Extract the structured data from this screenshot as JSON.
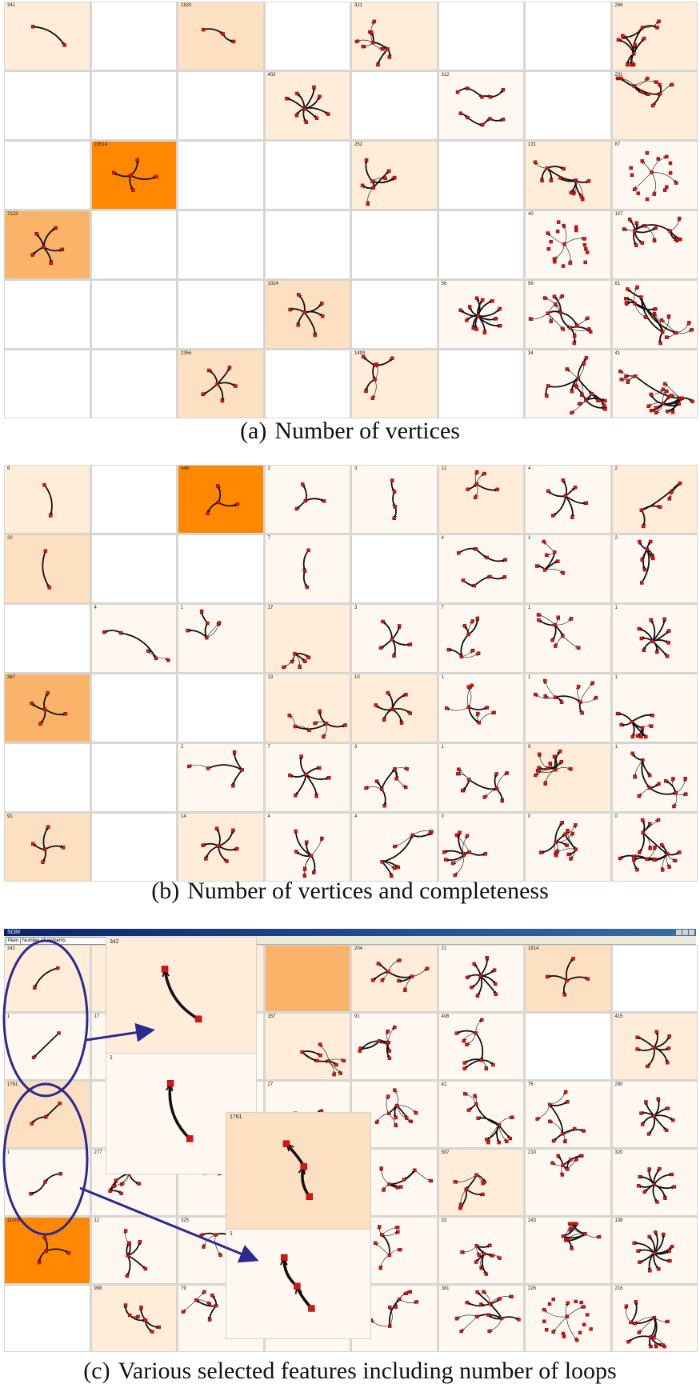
{
  "palette": {
    "0": "#ffffff",
    "1": "#fff8f0",
    "2": "#ffecd9",
    "3": "#fde0c2",
    "4": "#fbb36a",
    "5": "#ff8800",
    "edge": "#111111",
    "node": "#dd1111",
    "ring": "#2a2a90"
  },
  "panel_a": {
    "caption_tag": "(a)",
    "caption_text": "Number of vertices",
    "cells": [
      {
        "s": 2,
        "l": "341",
        "v": 2,
        "t": "arc"
      },
      {
        "s": 0
      },
      {
        "s": 3,
        "l": "1820",
        "v": 3,
        "t": "arc"
      },
      {
        "s": 0
      },
      {
        "s": 2,
        "l": "321",
        "v": 10,
        "t": "tree"
      },
      {
        "s": 0
      },
      {
        "s": 0
      },
      {
        "s": 2,
        "l": "266",
        "v": 12,
        "t": "tree"
      },
      {
        "s": 0
      },
      {
        "s": 0
      },
      {
        "s": 0
      },
      {
        "s": 2,
        "l": "402",
        "v": 9,
        "t": "star"
      },
      {
        "s": 0
      },
      {
        "s": 1,
        "l": "312",
        "v": 10,
        "t": "pair"
      },
      {
        "s": 0
      },
      {
        "s": 2,
        "l": "231",
        "v": 11,
        "t": "tree"
      },
      {
        "s": 0
      },
      {
        "s": 5,
        "l": "23514",
        "v": 5,
        "t": "star"
      },
      {
        "s": 0
      },
      {
        "s": 0
      },
      {
        "s": 2,
        "l": "252",
        "v": 9,
        "t": "tree"
      },
      {
        "s": 0
      },
      {
        "s": 2,
        "l": "131",
        "v": 12,
        "t": "tree"
      },
      {
        "s": 1,
        "l": "87",
        "v": 16,
        "t": "ring"
      },
      {
        "s": 4,
        "l": "7123",
        "v": 6,
        "t": "star"
      },
      {
        "s": 0
      },
      {
        "s": 0
      },
      {
        "s": 0
      },
      {
        "s": 0
      },
      {
        "s": 0
      },
      {
        "s": 1,
        "l": "40",
        "v": 18,
        "t": "ring"
      },
      {
        "s": 1,
        "l": "107",
        "v": 14,
        "t": "tree"
      },
      {
        "s": 0
      },
      {
        "s": 0
      },
      {
        "s": 0
      },
      {
        "s": 3,
        "l": "1024",
        "v": 7,
        "t": "star"
      },
      {
        "s": 0
      },
      {
        "s": 1,
        "l": "56",
        "v": 13,
        "t": "star"
      },
      {
        "s": 1,
        "l": "99",
        "v": 16,
        "t": "tree"
      },
      {
        "s": 1,
        "l": "61",
        "v": 18,
        "t": "tree"
      },
      {
        "s": 0
      },
      {
        "s": 0
      },
      {
        "s": 3,
        "l": "2356",
        "v": 6,
        "t": "star"
      },
      {
        "s": 0
      },
      {
        "s": 2,
        "l": "1493",
        "v": 7,
        "t": "tree"
      },
      {
        "s": 0
      },
      {
        "s": 1,
        "l": "34",
        "v": 20,
        "t": "tree"
      },
      {
        "s": 1,
        "l": "41",
        "v": 22,
        "t": "tree"
      }
    ]
  },
  "panel_b": {
    "caption_tag": "(b)",
    "caption_text": "Number of vertices and completeness",
    "cells": [
      {
        "s": 2,
        "l": "6",
        "v": 2,
        "t": "arc"
      },
      {
        "s": 0
      },
      {
        "s": 5,
        "l": "448",
        "v": 4,
        "t": "star"
      },
      {
        "s": 1,
        "l": "2",
        "v": 4,
        "t": "star"
      },
      {
        "s": 1,
        "l": "3",
        "v": 4,
        "t": "arc"
      },
      {
        "s": 2,
        "l": "12",
        "v": 6,
        "t": "tree"
      },
      {
        "s": 1,
        "l": "4",
        "v": 7,
        "t": "star"
      },
      {
        "s": 2,
        "l": "2",
        "v": 6,
        "t": "tree"
      },
      {
        "s": 3,
        "l": "20",
        "v": 2,
        "t": "arc"
      },
      {
        "s": 0
      },
      {
        "s": 0
      },
      {
        "s": 1,
        "l": "7",
        "v": 3,
        "t": "arc"
      },
      {
        "s": 0
      },
      {
        "s": 1,
        "l": "4",
        "v": 7,
        "t": "pair"
      },
      {
        "s": 1,
        "l": "1",
        "v": 7,
        "t": "tree"
      },
      {
        "s": 1,
        "l": "2",
        "v": 8,
        "t": "tree"
      },
      {
        "s": 0
      },
      {
        "s": 1,
        "l": "4",
        "v": 5,
        "t": "tree"
      },
      {
        "s": 1,
        "l": "1",
        "v": 6,
        "t": "tree"
      },
      {
        "s": 2,
        "l": "17",
        "v": 6,
        "t": "tree"
      },
      {
        "s": 1,
        "l": "3",
        "v": 6,
        "t": "star"
      },
      {
        "s": 1,
        "l": "7",
        "v": 8,
        "t": "tree"
      },
      {
        "s": 1,
        "l": "1",
        "v": 9,
        "t": "tree"
      },
      {
        "s": 1,
        "l": "1",
        "v": 10,
        "t": "star"
      },
      {
        "s": 4,
        "l": "367",
        "v": 5,
        "t": "star"
      },
      {
        "s": 0
      },
      {
        "s": 0
      },
      {
        "s": 2,
        "l": "13",
        "v": 8,
        "t": "tree"
      },
      {
        "s": 2,
        "l": "10",
        "v": 7,
        "t": "star"
      },
      {
        "s": 1,
        "l": "1",
        "v": 8,
        "t": "tree"
      },
      {
        "s": 1,
        "l": "1",
        "v": 10,
        "t": "tree"
      },
      {
        "s": 1,
        "l": "1",
        "v": 10,
        "t": "tree"
      },
      {
        "s": 0
      },
      {
        "s": 0
      },
      {
        "s": 1,
        "l": "2",
        "v": 5,
        "t": "tree"
      },
      {
        "s": 1,
        "l": "7",
        "v": 7,
        "t": "star"
      },
      {
        "s": 1,
        "l": "3",
        "v": 8,
        "t": "tree"
      },
      {
        "s": 1,
        "l": "1",
        "v": 10,
        "t": "tree"
      },
      {
        "s": 2,
        "l": "9",
        "v": 12,
        "t": "tree"
      },
      {
        "s": 1,
        "l": "1",
        "v": 13,
        "t": "tree"
      },
      {
        "s": 3,
        "l": "91",
        "v": 5,
        "t": "star"
      },
      {
        "s": 0
      },
      {
        "s": 2,
        "l": "14",
        "v": 7,
        "t": "star"
      },
      {
        "s": 1,
        "l": "4",
        "v": 8,
        "t": "tree"
      },
      {
        "s": 1,
        "l": "4",
        "v": 8,
        "t": "tree"
      },
      {
        "s": 1,
        "l": "0",
        "v": 10,
        "t": "tree"
      },
      {
        "s": 1,
        "l": "0",
        "v": 14,
        "t": "tree"
      },
      {
        "s": 1,
        "l": "0",
        "v": 20,
        "t": "tree"
      }
    ]
  },
  "panel_c": {
    "caption_tag": "(c)",
    "caption_text": "Various selected features including number of loops",
    "window_title": "SOM",
    "toolbar_main": "Main",
    "toolbar_field": "Number of elements",
    "cells": [
      {
        "s": 2,
        "l": "342",
        "v": 2,
        "t": "arc"
      },
      {
        "s": 2,
        "l": "",
        "v": 0,
        "t": "arc"
      },
      {
        "s": 2,
        "l": "",
        "v": 0,
        "t": "arc"
      },
      {
        "s": 4,
        "l": "",
        "v": 0,
        "t": "arc"
      },
      {
        "s": 2,
        "l": "204",
        "v": 9,
        "t": "tree"
      },
      {
        "s": 1,
        "l": "21",
        "v": 9,
        "t": "star"
      },
      {
        "s": 3,
        "l": "1814",
        "v": 5,
        "t": "star"
      },
      {
        "s": 0
      },
      {
        "s": 1,
        "l": "1",
        "v": 2,
        "t": "arc"
      },
      {
        "s": 1,
        "l": "17",
        "v": 0,
        "t": "arc"
      },
      {
        "s": 1,
        "l": "",
        "v": 0,
        "t": "arc"
      },
      {
        "s": 2,
        "l": "157",
        "v": 9,
        "t": "tree"
      },
      {
        "s": 1,
        "l": "91",
        "v": 9,
        "t": "tree"
      },
      {
        "s": 1,
        "l": "406",
        "v": 10,
        "t": "tree"
      },
      {
        "s": 0
      },
      {
        "s": 2,
        "l": "415",
        "v": 8,
        "t": "star"
      },
      {
        "s": 3,
        "l": "1761",
        "v": 3,
        "t": "arc"
      },
      {
        "s": 1,
        "l": "",
        "v": 0,
        "t": "arc"
      },
      {
        "s": 1,
        "l": "",
        "v": 0,
        "t": "arc"
      },
      {
        "s": 1,
        "l": "27",
        "v": 9,
        "t": "tree"
      },
      {
        "s": 1,
        "l": "",
        "v": 10,
        "t": "tree"
      },
      {
        "s": 1,
        "l": "42",
        "v": 12,
        "t": "tree"
      },
      {
        "s": 1,
        "l": "76",
        "v": 10,
        "t": "tree"
      },
      {
        "s": 1,
        "l": "290",
        "v": 9,
        "t": "star"
      },
      {
        "s": 1,
        "l": "1",
        "v": 3,
        "t": "arc"
      },
      {
        "s": 1,
        "l": "277",
        "v": 8,
        "t": "tree"
      },
      {
        "s": 1,
        "l": "",
        "v": 6,
        "t": "tree"
      },
      {
        "s": 1,
        "l": "",
        "v": 0,
        "t": "arc"
      },
      {
        "s": 1,
        "l": "",
        "v": 8,
        "t": "tree"
      },
      {
        "s": 2,
        "l": "507",
        "v": 8,
        "t": "tree"
      },
      {
        "s": 1,
        "l": "210",
        "v": 8,
        "t": "tree"
      },
      {
        "s": 1,
        "l": "320",
        "v": 10,
        "t": "star"
      },
      {
        "s": 5,
        "l": "11006",
        "v": 4,
        "t": "star"
      },
      {
        "s": 1,
        "l": "12",
        "v": 7,
        "t": "tree"
      },
      {
        "s": 1,
        "l": "325",
        "v": 5,
        "t": "tree"
      },
      {
        "s": 1,
        "l": "",
        "v": 0,
        "t": "arc"
      },
      {
        "s": 1,
        "l": "",
        "v": 8,
        "t": "tree"
      },
      {
        "s": 1,
        "l": "33",
        "v": 10,
        "t": "tree"
      },
      {
        "s": 1,
        "l": "243",
        "v": 11,
        "t": "tree"
      },
      {
        "s": 1,
        "l": "138",
        "v": 12,
        "t": "star"
      },
      {
        "s": 0
      },
      {
        "s": 2,
        "l": "998",
        "v": 7,
        "t": "tree"
      },
      {
        "s": 1,
        "l": "79",
        "v": 7,
        "t": "tree"
      },
      {
        "s": 1,
        "l": "",
        "v": 0,
        "t": "arc"
      },
      {
        "s": 1,
        "l": "",
        "v": 8,
        "t": "tree"
      },
      {
        "s": 1,
        "l": "381",
        "v": 14,
        "t": "tree"
      },
      {
        "s": 1,
        "l": "226",
        "v": 18,
        "t": "ring"
      },
      {
        "s": 1,
        "l": "216",
        "v": 14,
        "t": "tree"
      }
    ],
    "zooms": [
      {
        "label": "342",
        "s": 2,
        "v": 2,
        "t": "arc"
      },
      {
        "label": "1",
        "s": 1,
        "v": 2,
        "t": "arc"
      },
      {
        "label": "1761",
        "s": 3,
        "v": 3,
        "t": "arc"
      },
      {
        "label": "1",
        "s": 1,
        "v": 3,
        "t": "arc"
      }
    ]
  }
}
